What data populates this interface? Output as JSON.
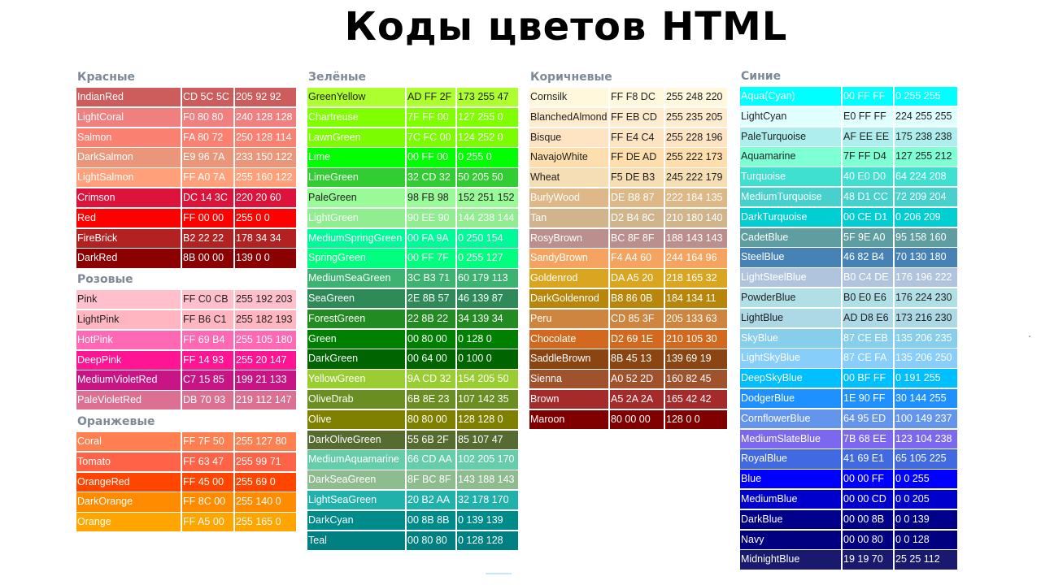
{
  "title": "Коды цветов HTML",
  "columns": [
    {
      "groups": [
        {
          "title": "Красные",
          "rows": [
            [
              "IndianRed",
              "CD 5C 5C",
              "205 92 92",
              "#CD5C5C"
            ],
            [
              "LightCoral",
              "F0 80 80",
              "240 128 128",
              "#F08080"
            ],
            [
              "Salmon",
              "FA 80 72",
              "250 128 114",
              "#FA8072"
            ],
            [
              "DarkSalmon",
              "E9 96 7A",
              "233 150 122",
              "#E9967A"
            ],
            [
              "LightSalmon",
              "FF A0 7A",
              "255 160 122",
              "#FFA07A"
            ],
            [
              "Crimson",
              "DC 14 3C",
              "220 20 60",
              "#DC143C"
            ],
            [
              "Red",
              "FF 00 00",
              "255 0 0",
              "#FF0000"
            ],
            [
              "FireBrick",
              "B2 22 22",
              "178 34 34",
              "#B22222"
            ],
            [
              "DarkRed",
              "8B 00 00",
              "139 0 0",
              "#8B0000"
            ]
          ]
        },
        {
          "title": "Розовые",
          "rows": [
            [
              "Pink",
              "FF C0 CB",
              "255 192 203",
              "#FFC0CB"
            ],
            [
              "LightPink",
              "FF B6 C1",
              "255 182 193",
              "#FFB6C1"
            ],
            [
              "HotPink",
              "FF 69 B4",
              "255 105 180",
              "#FF69B4"
            ],
            [
              "DeepPink",
              "FF 14 93",
              "255 20 147",
              "#FF1493"
            ],
            [
              "MediumVioletRed",
              "C7 15 85",
              "199 21 133",
              "#C71585"
            ],
            [
              "PaleVioletRed",
              "DB 70 93",
              "219 112 147",
              "#DB7093"
            ]
          ]
        },
        {
          "title": "Оранжевые",
          "rows": [
            [
              "Coral",
              "FF 7F 50",
              "255 127 80",
              "#FF7F50"
            ],
            [
              "Tomato",
              "FF 63 47",
              "255 99 71",
              "#FF6347"
            ],
            [
              "OrangeRed",
              "FF 45 00",
              "255 69 0",
              "#FF4500"
            ],
            [
              "DarkOrange",
              "FF 8C 00",
              "255 140 0",
              "#FF8C00"
            ],
            [
              "Orange",
              "FF A5 00",
              "255 165 0",
              "#FFA500"
            ]
          ]
        }
      ]
    },
    {
      "groups": [
        {
          "title": "Зелёные",
          "rows": [
            [
              "GreenYellow",
              "AD FF 2F",
              "173 255 47",
              "#ADFF2F"
            ],
            [
              "Chartreuse",
              "7F FF 00",
              "127 255 0",
              "#7FFF00"
            ],
            [
              "LawnGreen",
              "7C FC 00",
              "124 252 0",
              "#7CFC00"
            ],
            [
              "Lime",
              "00 FF 00",
              "0 255 0",
              "#00FF00"
            ],
            [
              "LimeGreen",
              "32 CD 32",
              "50 205 50",
              "#32CD32"
            ],
            [
              "PaleGreen",
              "98 FB 98",
              "152 251 152",
              "#98FB98"
            ],
            [
              "LightGreen",
              "90 EE 90",
              "144 238 144",
              "#90EE90"
            ],
            [
              "MediumSpringGreen",
              "00 FA 9A",
              "0 250 154",
              "#00FA9A"
            ],
            [
              "SpringGreen",
              "00 FF 7F",
              "0 255 127",
              "#00FF7F"
            ],
            [
              "MediumSeaGreen",
              "3C B3 71",
              "60 179 113",
              "#3CB371"
            ],
            [
              "SeaGreen",
              "2E 8B 57",
              "46 139 87",
              "#2E8B57"
            ],
            [
              "ForestGreen",
              "22 8B 22",
              "34 139 34",
              "#228B22"
            ],
            [
              "Green",
              "00 80 00",
              "0 128 0",
              "#008000"
            ],
            [
              "DarkGreen",
              "00 64 00",
              "0 100 0",
              "#006400"
            ],
            [
              "YellowGreen",
              "9A CD 32",
              "154 205 50",
              "#9ACD32"
            ],
            [
              "OliveDrab",
              "6B 8E 23",
              "107 142 35",
              "#6B8E23"
            ],
            [
              "Olive",
              "80 80 00",
              "128 128 0",
              "#808000"
            ],
            [
              "DarkOliveGreen",
              "55 6B 2F",
              "85 107 47",
              "#556B2F"
            ],
            [
              "MediumAquamarine",
              "66 CD AA",
              "102 205 170",
              "#66CDAA"
            ],
            [
              "DarkSeaGreen",
              "8F BC 8F",
              "143 188 143",
              "#8FBC8F"
            ],
            [
              "LightSeaGreen",
              "20 B2 AA",
              "32 178 170",
              "#20B2AA"
            ],
            [
              "DarkCyan",
              "00 8B 8B",
              "0 139 139",
              "#008B8B"
            ],
            [
              "Teal",
              "00 80 80",
              "0 128 128",
              "#008080"
            ]
          ]
        }
      ]
    },
    {
      "groups": [
        {
          "title": "Коричневые",
          "rows": [
            [
              "Cornsilk",
              "FF F8 DC",
              "255 248 220",
              "#FFF8DC"
            ],
            [
              "BlanchedAlmond",
              "FF EB CD",
              "255 235 205",
              "#FFEBCD"
            ],
            [
              "Bisque",
              "FF E4 C4",
              "255 228 196",
              "#FFE4C4"
            ],
            [
              "NavajoWhite",
              "FF DE AD",
              "255 222 173",
              "#FFDEAD"
            ],
            [
              "Wheat",
              "F5 DE B3",
              "245 222 179",
              "#F5DEB3"
            ],
            [
              "BurlyWood",
              "DE B8 87",
              "222 184 135",
              "#DEB887"
            ],
            [
              "Tan",
              "D2 B4 8C",
              "210 180 140",
              "#D2B48C"
            ],
            [
              "RosyBrown",
              "BC 8F 8F",
              "188 143 143",
              "#BC8F8F"
            ],
            [
              "SandyBrown",
              "F4 A4 60",
              "244 164 96",
              "#F4A460"
            ],
            [
              "Goldenrod",
              "DA A5 20",
              "218 165 32",
              "#DAA520"
            ],
            [
              "DarkGoldenrod",
              "B8 86 0B",
              "184 134 11",
              "#B8860B"
            ],
            [
              "Peru",
              "CD 85 3F",
              "205 133 63",
              "#CD853F"
            ],
            [
              "Chocolate",
              "D2 69 1E",
              "210 105 30",
              "#D2691E"
            ],
            [
              "SaddleBrown",
              "8B 45 13",
              "139 69 19",
              "#8B4513"
            ],
            [
              "Sienna",
              "A0 52 2D",
              "160 82 45",
              "#A0522D"
            ],
            [
              "Brown",
              "A5 2A 2A",
              "165 42 42",
              "#A52A2A"
            ],
            [
              "Maroon",
              "80 00 00",
              "128 0 0",
              "#800000"
            ]
          ]
        }
      ]
    },
    {
      "groups": [
        {
          "title": "Синие",
          "rows": [
            [
              "Aqua(Cyan)",
              "00 FF FF",
              "0 255 255",
              "#00FFFF"
            ],
            [
              "LightCyan",
              "E0 FF FF",
              "224 255 255",
              "#E0FFFF"
            ],
            [
              "PaleTurquoise",
              "AF EE EE",
              "175 238 238",
              "#AFEEEE"
            ],
            [
              "Aquamarine",
              "7F FF D4",
              "127 255 212",
              "#7FFFD4"
            ],
            [
              "Turquoise",
              "40 E0 D0",
              "64 224 208",
              "#40E0D0"
            ],
            [
              "MediumTurquoise",
              "48 D1 CC",
              "72 209 204",
              "#48D1CC"
            ],
            [
              "DarkTurquoise",
              "00 CE D1",
              "0 206 209",
              "#00CED1"
            ],
            [
              "CadetBlue",
              "5F 9E A0",
              "95 158 160",
              "#5F9EA0"
            ],
            [
              "SteelBlue",
              "46 82 B4",
              "70 130 180",
              "#4682B4"
            ],
            [
              "LightSteelBlue",
              "B0 C4 DE",
              "176 196 222",
              "#B0C4DE"
            ],
            [
              "PowderBlue",
              "B0 E0 E6",
              "176 224 230",
              "#B0E0E6"
            ],
            [
              "LightBlue",
              "AD D8 E6",
              "173 216 230",
              "#ADD8E6"
            ],
            [
              "SkyBlue",
              "87 CE EB",
              "135 206 235",
              "#87CEEB"
            ],
            [
              "LightSkyBlue",
              "87 CE FA",
              "135 206 250",
              "#87CEFA"
            ],
            [
              "DeepSkyBlue",
              "00 BF FF",
              "0 191 255",
              "#00BFFF"
            ],
            [
              "DodgerBlue",
              "1E 90 FF",
              "30 144 255",
              "#1E90FF"
            ],
            [
              "CornflowerBlue",
              "64 95 ED",
              "100 149 237",
              "#6495ED"
            ],
            [
              "MediumSlateBlue",
              "7B 68 EE",
              "123 104 238",
              "#7B68EE"
            ],
            [
              "RoyalBlue",
              "41 69 E1",
              "65 105 225",
              "#4169E1"
            ],
            [
              "Blue",
              "00 00 FF",
              "0 0 255",
              "#0000FF"
            ],
            [
              "MediumBlue",
              "00 00 CD",
              "0 0 205",
              "#0000CD"
            ],
            [
              "DarkBlue",
              "00 00 8B",
              "0 0 139",
              "#00008B"
            ],
            [
              "Navy",
              "00 00 80",
              "0 0 128",
              "#000080"
            ],
            [
              "MidnightBlue",
              "19 19 70",
              "25 25 112",
              "#191970"
            ]
          ]
        }
      ]
    }
  ]
}
